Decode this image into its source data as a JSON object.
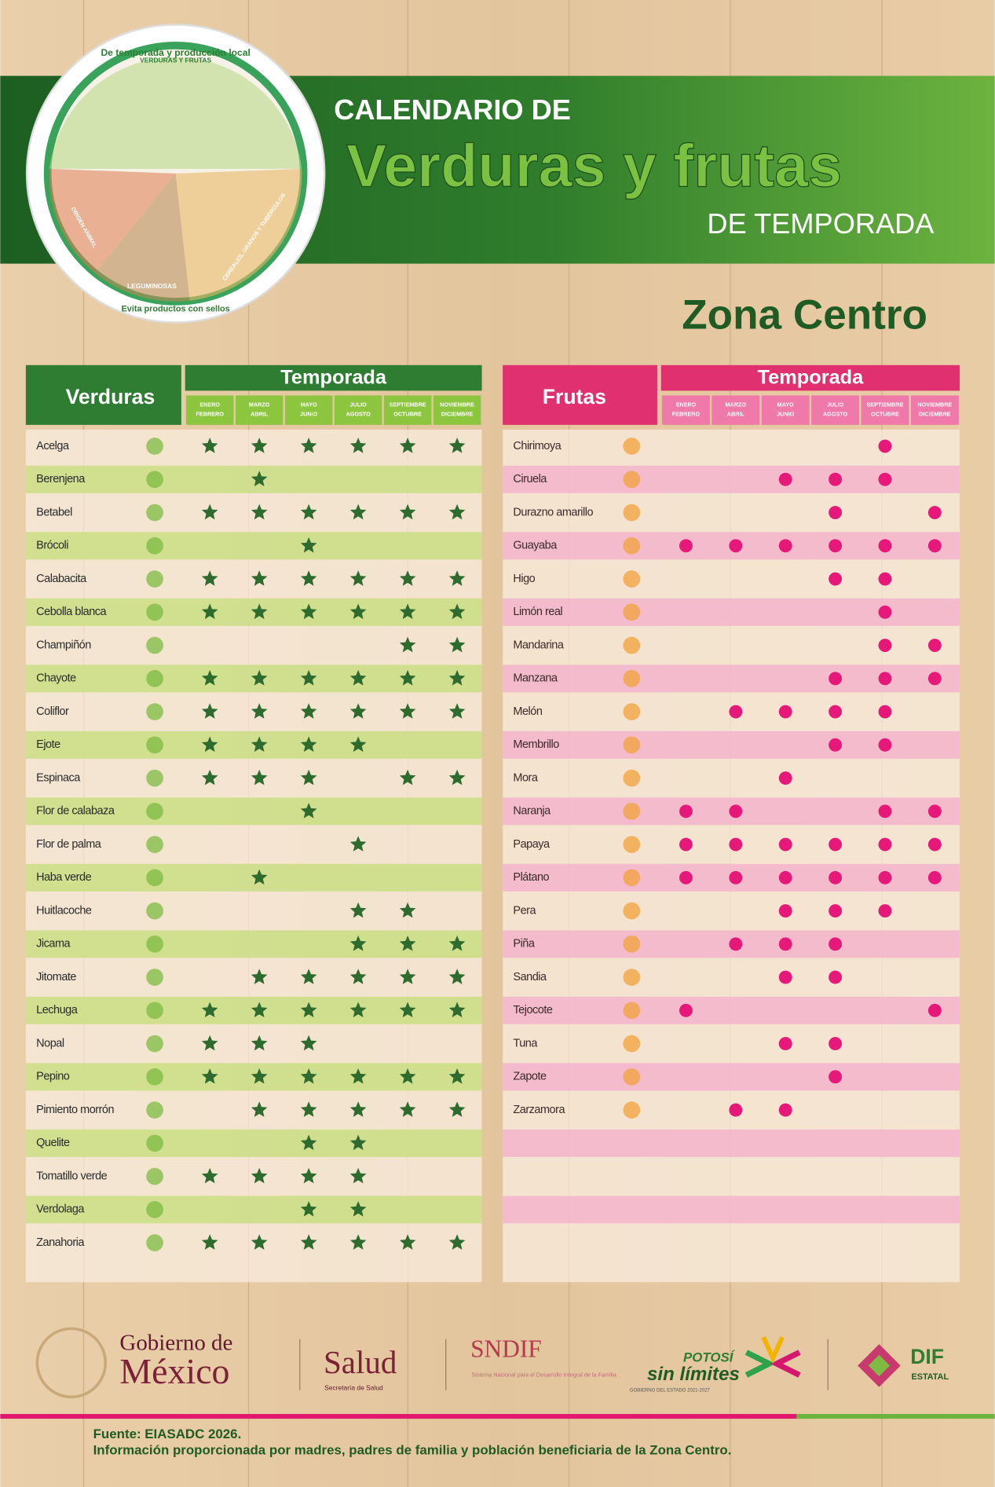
{
  "header": {
    "plate_top": "De temporada y producción local",
    "plate_labels": [
      "VERDURAS Y FRUTAS",
      "LEGUMINOSAS",
      "ORIGEN ANIMAL",
      "CEREALES, GRANOS Y TUBÉRCULOS"
    ],
    "plate_bottom": "Evita productos con sellos",
    "title_line1": "CALENDARIO DE",
    "title_line2": "Verduras y frutas",
    "title_line3": "DE TEMPORADA",
    "zone": "Zona Centro"
  },
  "verduras": {
    "heading": "Verduras",
    "season_heading": "Temporada",
    "periods": [
      [
        "ENERO",
        "FEBRERO"
      ],
      [
        "MARZO",
        "ABRIL"
      ],
      [
        "MAYO",
        "JUNIO"
      ],
      [
        "JULIO",
        "AGOSTO"
      ],
      [
        "SEPTIEMBRE",
        "OCTUBRE"
      ],
      [
        "NOVIEMBRE",
        "DICIEMBRE"
      ]
    ],
    "rows": [
      {
        "name": "Acelga",
        "season": [
          true,
          true,
          true,
          true,
          true,
          true
        ]
      },
      {
        "name": "Berenjena",
        "season": [
          false,
          true,
          false,
          false,
          false,
          false
        ]
      },
      {
        "name": "Betabel",
        "season": [
          true,
          true,
          true,
          true,
          true,
          true
        ]
      },
      {
        "name": "Brócoli",
        "season": [
          false,
          false,
          true,
          false,
          false,
          false
        ]
      },
      {
        "name": "Calabacita",
        "season": [
          true,
          true,
          true,
          true,
          true,
          true
        ]
      },
      {
        "name": "Cebolla blanca",
        "season": [
          true,
          true,
          true,
          true,
          true,
          true
        ]
      },
      {
        "name": "Champiñón",
        "season": [
          false,
          false,
          false,
          false,
          true,
          true
        ]
      },
      {
        "name": "Chayote",
        "season": [
          true,
          true,
          true,
          true,
          true,
          true
        ]
      },
      {
        "name": "Coliflor",
        "season": [
          true,
          true,
          true,
          true,
          true,
          true
        ]
      },
      {
        "name": "Ejote",
        "season": [
          true,
          true,
          true,
          true,
          false,
          false
        ]
      },
      {
        "name": "Espinaca",
        "season": [
          true,
          true,
          true,
          false,
          true,
          true
        ]
      },
      {
        "name": "Flor de calabaza",
        "season": [
          false,
          false,
          true,
          false,
          false,
          false
        ]
      },
      {
        "name": "Flor de palma",
        "season": [
          false,
          false,
          false,
          true,
          false,
          false
        ]
      },
      {
        "name": "Haba verde",
        "season": [
          false,
          true,
          false,
          false,
          false,
          false
        ]
      },
      {
        "name": "Huitlacoche",
        "season": [
          false,
          false,
          false,
          true,
          true,
          false
        ]
      },
      {
        "name": "Jicama",
        "season": [
          false,
          false,
          false,
          true,
          true,
          true
        ]
      },
      {
        "name": "Jitomate",
        "season": [
          false,
          true,
          true,
          true,
          true,
          true
        ]
      },
      {
        "name": "Lechuga",
        "season": [
          true,
          true,
          true,
          true,
          true,
          true
        ]
      },
      {
        "name": "Nopal",
        "season": [
          true,
          true,
          true,
          false,
          false,
          false
        ]
      },
      {
        "name": "Pepino",
        "season": [
          true,
          true,
          true,
          true,
          true,
          true
        ]
      },
      {
        "name": "Pimiento morrón",
        "season": [
          false,
          true,
          true,
          true,
          true,
          true
        ]
      },
      {
        "name": "Quelite",
        "season": [
          false,
          false,
          true,
          true,
          false,
          false
        ]
      },
      {
        "name": "Tomatillo verde",
        "season": [
          true,
          true,
          true,
          true,
          false,
          false
        ]
      },
      {
        "name": "Verdolaga",
        "season": [
          false,
          false,
          true,
          true,
          false,
          false
        ]
      },
      {
        "name": "Zanahoria",
        "season": [
          true,
          true,
          true,
          true,
          true,
          true
        ]
      }
    ]
  },
  "frutas": {
    "heading": "Frutas",
    "season_heading": "Temporada",
    "periods": [
      [
        "ENERO",
        "FEBRERO"
      ],
      [
        "MARZO",
        "ABRIL"
      ],
      [
        "MAYO",
        "JUNIO"
      ],
      [
        "JULIO",
        "AGOSTO"
      ],
      [
        "SEPTIEMBRE",
        "OCTUBRE"
      ],
      [
        "NOVIEMBRE",
        "DICIEMBRE"
      ]
    ],
    "rows": [
      {
        "name": "Chirimoya",
        "season": [
          false,
          false,
          false,
          false,
          true,
          false
        ]
      },
      {
        "name": "Ciruela",
        "season": [
          false,
          false,
          true,
          true,
          true,
          false
        ]
      },
      {
        "name": "Durazno amarillo",
        "season": [
          false,
          false,
          false,
          true,
          false,
          true
        ]
      },
      {
        "name": "Guayaba",
        "season": [
          true,
          true,
          true,
          true,
          true,
          true
        ]
      },
      {
        "name": "Higo",
        "season": [
          false,
          false,
          false,
          true,
          true,
          false
        ]
      },
      {
        "name": "Limón real",
        "season": [
          false,
          false,
          false,
          false,
          true,
          false
        ]
      },
      {
        "name": "Mandarina",
        "season": [
          false,
          false,
          false,
          false,
          true,
          true
        ]
      },
      {
        "name": "Manzana",
        "season": [
          false,
          false,
          false,
          true,
          true,
          true
        ]
      },
      {
        "name": "Melón",
        "season": [
          false,
          true,
          true,
          true,
          true,
          false
        ]
      },
      {
        "name": "Membrillo",
        "season": [
          false,
          false,
          false,
          true,
          true,
          false
        ]
      },
      {
        "name": "Mora",
        "season": [
          false,
          false,
          true,
          false,
          false,
          false
        ]
      },
      {
        "name": "Naranja",
        "season": [
          true,
          true,
          false,
          false,
          true,
          true
        ]
      },
      {
        "name": "Papaya",
        "season": [
          true,
          true,
          true,
          true,
          true,
          true
        ]
      },
      {
        "name": "Plátano",
        "season": [
          true,
          true,
          true,
          true,
          true,
          true
        ]
      },
      {
        "name": "Pera",
        "season": [
          false,
          false,
          true,
          true,
          true,
          false
        ]
      },
      {
        "name": "Piña",
        "season": [
          false,
          true,
          true,
          true,
          false,
          false
        ]
      },
      {
        "name": "Sandia",
        "season": [
          false,
          false,
          true,
          true,
          false,
          false
        ]
      },
      {
        "name": "Tejocote",
        "season": [
          true,
          false,
          false,
          false,
          false,
          true
        ]
      },
      {
        "name": "Tuna",
        "season": [
          false,
          false,
          true,
          true,
          false,
          false
        ]
      },
      {
        "name": "Zapote",
        "season": [
          false,
          false,
          false,
          true,
          false,
          false
        ]
      },
      {
        "name": "Zarzamora",
        "season": [
          false,
          true,
          true,
          false,
          false,
          false
        ]
      }
    ]
  },
  "footer": {
    "gob_line1": "Gobierno de",
    "gob_line2": "México",
    "salud": "Salud",
    "salud_sub": "Secretaría de Salud",
    "sndif": "SNDIF",
    "sndif_sub": "Sistema Nacional para el Desarrollo Integral de la Familia",
    "potosi": "POTOSÍ",
    "potosi2": "sin límites",
    "potosi_sub": "GOBIERNO DEL ESTADO 2021-2027",
    "dif": "DIF",
    "dif_sub": "ESTATAL",
    "source": "Fuente: EIASADC 2026.",
    "note": "Información proporcionada por madres, padres de familia y población beneficiaria de la Zona Centro."
  }
}
